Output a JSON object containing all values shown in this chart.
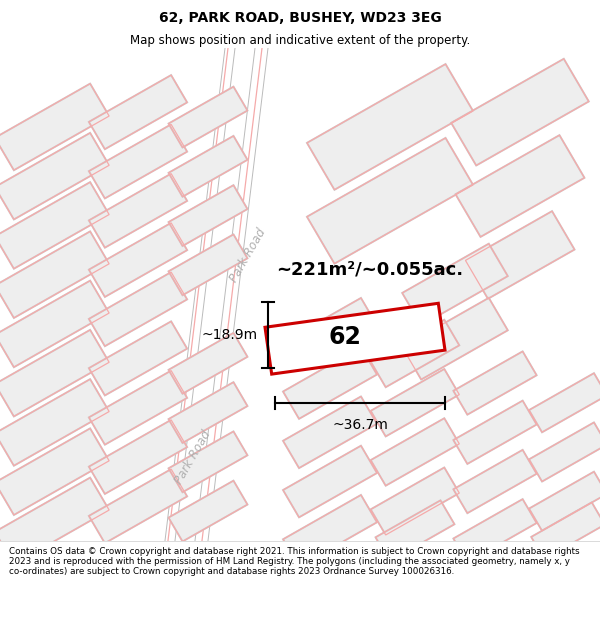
{
  "title": "62, PARK ROAD, BUSHEY, WD23 3EG",
  "subtitle": "Map shows position and indicative extent of the property.",
  "footer": "Contains OS data © Crown copyright and database right 2021. This information is subject to Crown copyright and database rights 2023 and is reproduced with the permission of HM Land Registry. The polygons (including the associated geometry, namely x, y co-ordinates) are subject to Crown copyright and database rights 2023 Ordnance Survey 100026316.",
  "area_text": "~221m²/~0.055ac.",
  "label_62": "62",
  "dim_width": "~36.7m",
  "dim_height": "~18.9m",
  "road_label_upper": "Park Road",
  "road_label_lower": "Park Road",
  "highlight_color": "#cc0000",
  "building_fill": "#eeeeee",
  "building_outline_pink": "#f5aaaa",
  "building_outline_gray": "#cccccc",
  "map_bg": "#ffffff",
  "road_fill": "#ffffff"
}
